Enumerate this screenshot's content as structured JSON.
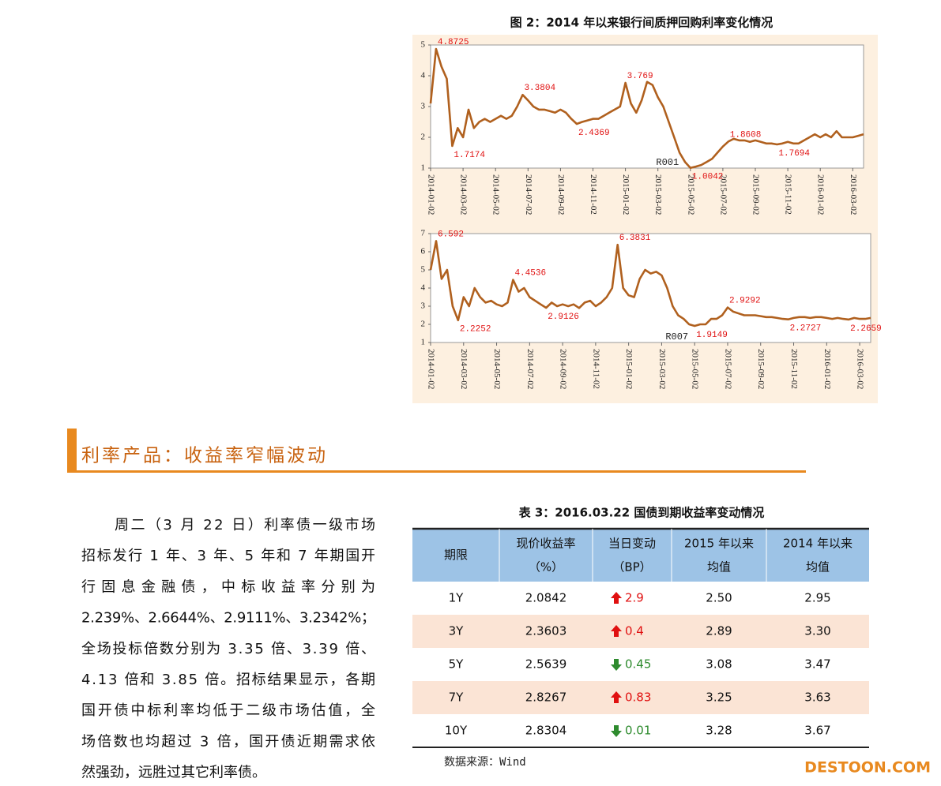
{
  "figure_title": "图 2：2014 年以来银行间质押回购利率变化情况",
  "chart_data": [
    {
      "type": "line",
      "categories": [
        "2014-01-02",
        null,
        null,
        null,
        null,
        null,
        "2014-03-02",
        null,
        null,
        null,
        null,
        null,
        "2014-05-02",
        null,
        null,
        null,
        null,
        null,
        "2014-07-02",
        null,
        null,
        null,
        null,
        null,
        "2014-09-02",
        null,
        null,
        null,
        null,
        null,
        "2014-11-02",
        null,
        null,
        null,
        null,
        null,
        "2015-01-02",
        null,
        null,
        null,
        null,
        null,
        "2015-03-02",
        null,
        null,
        null,
        null,
        null,
        "2015-05-02",
        null,
        null,
        null,
        null,
        null,
        "2015-07-02",
        null,
        null,
        null,
        null,
        null,
        "2015-09-02",
        null,
        null,
        null,
        null,
        null,
        "2015-11-02",
        null,
        null,
        null,
        null,
        null,
        "2016-01-02",
        null,
        null,
        null,
        null,
        null,
        "2016-03-02",
        null,
        null
      ],
      "series": [
        {
          "name": "R001",
          "color": "#b0601e",
          "values": [
            3.1,
            4.8725,
            4.3,
            3.9,
            1.7174,
            2.3,
            2.0,
            2.9,
            2.3,
            2.5,
            2.6,
            2.5,
            2.6,
            2.7,
            2.6,
            2.7,
            3.0,
            3.3804,
            3.2,
            3.0,
            2.9,
            2.9,
            2.85,
            2.8,
            2.9,
            2.8,
            2.6,
            2.4369,
            2.5,
            2.55,
            2.6,
            2.6,
            2.7,
            2.8,
            2.9,
            3.0,
            3.769,
            3.1,
            2.8,
            3.2,
            3.8,
            3.7,
            3.3,
            3.0,
            2.5,
            2.0,
            1.5,
            1.2,
            1.0042,
            1.05,
            1.1,
            1.2,
            1.3,
            1.5,
            1.7,
            1.8608,
            1.95,
            1.9,
            1.9,
            1.85,
            1.9,
            1.85,
            1.8,
            1.8,
            1.7694,
            1.8,
            1.85,
            1.8,
            1.8,
            1.9,
            2.0,
            2.1,
            2.0,
            2.1,
            2.0,
            2.2,
            2.0,
            2.0,
            2.0,
            2.05,
            2.1
          ],
          "value_labels": [
            null,
            "4.8725",
            null,
            null,
            "1.7174",
            null,
            null,
            null,
            null,
            null,
            null,
            null,
            null,
            null,
            null,
            null,
            null,
            "3.3804",
            null,
            null,
            null,
            null,
            null,
            null,
            null,
            null,
            null,
            "2.4369",
            null,
            null,
            null,
            null,
            null,
            null,
            null,
            null,
            "3.769",
            null,
            null,
            null,
            null,
            null,
            null,
            null,
            null,
            null,
            null,
            null,
            "1.0042",
            null,
            null,
            null,
            null,
            null,
            null,
            "1.8608",
            null,
            null,
            null,
            null,
            null,
            null,
            null,
            null,
            "1.7694",
            null,
            null,
            null,
            null,
            null,
            null,
            null,
            null,
            null,
            null,
            null,
            null,
            null,
            null,
            null,
            null
          ]
        }
      ],
      "ylim": [
        1,
        5
      ],
      "yticks": [
        1,
        2,
        3,
        4,
        5
      ]
    },
    {
      "type": "line",
      "categories": [
        "2014-01-02",
        null,
        null,
        null,
        null,
        null,
        "2014-03-02",
        null,
        null,
        null,
        null,
        null,
        "2014-05-02",
        null,
        null,
        null,
        null,
        null,
        "2014-07-02",
        null,
        null,
        null,
        null,
        null,
        "2014-09-02",
        null,
        null,
        null,
        null,
        null,
        "2014-11-02",
        null,
        null,
        null,
        null,
        null,
        "2015-01-02",
        null,
        null,
        null,
        null,
        null,
        "2015-03-02",
        null,
        null,
        null,
        null,
        null,
        "2015-05-02",
        null,
        null,
        null,
        null,
        null,
        "2015-07-02",
        null,
        null,
        null,
        null,
        null,
        "2015-09-02",
        null,
        null,
        null,
        null,
        null,
        "2015-11-02",
        null,
        null,
        null,
        null,
        null,
        "2016-01-02",
        null,
        null,
        null,
        null,
        null,
        "2016-03-02",
        null,
        null
      ],
      "series": [
        {
          "name": "R007",
          "color": "#b0601e",
          "values": [
            5.0,
            6.592,
            4.5,
            5.0,
            3.0,
            2.2252,
            3.5,
            3.0,
            4.0,
            3.5,
            3.2,
            3.3,
            3.1,
            3.0,
            3.2,
            4.4536,
            3.8,
            4.0,
            3.5,
            3.3,
            3.1,
            2.9126,
            3.2,
            3.0,
            3.1,
            3.0,
            3.1,
            2.9,
            3.2,
            3.3,
            3.0,
            3.2,
            3.5,
            4.0,
            6.3831,
            4.0,
            3.6,
            3.5,
            4.5,
            5.0,
            4.8,
            4.9,
            4.7,
            4.0,
            3.0,
            2.5,
            2.3,
            2.0,
            1.9149,
            2.0,
            2.0,
            2.3,
            2.3,
            2.5,
            2.9292,
            2.7,
            2.6,
            2.5,
            2.5,
            2.5,
            2.45,
            2.4,
            2.4,
            2.35,
            2.3,
            2.2727,
            2.35,
            2.4,
            2.4,
            2.35,
            2.4,
            2.4,
            2.35,
            2.3,
            2.35,
            2.3,
            2.2659,
            2.35,
            2.3,
            2.3,
            2.35
          ],
          "value_labels": [
            null,
            "6.592",
            null,
            null,
            null,
            "2.2252",
            null,
            null,
            null,
            null,
            null,
            null,
            null,
            null,
            null,
            "4.4536",
            null,
            null,
            null,
            null,
            null,
            "2.9126",
            null,
            null,
            null,
            null,
            null,
            null,
            null,
            null,
            null,
            null,
            null,
            null,
            "6.3831",
            null,
            null,
            null,
            null,
            null,
            null,
            null,
            null,
            null,
            null,
            null,
            null,
            null,
            "1.9149",
            null,
            null,
            null,
            null,
            null,
            "2.9292",
            null,
            null,
            null,
            null,
            null,
            null,
            null,
            null,
            null,
            null,
            "2.2727",
            null,
            null,
            null,
            null,
            null,
            null,
            null,
            null,
            null,
            null,
            "2.2659",
            null,
            null,
            null,
            null
          ]
        }
      ],
      "ylim": [
        1,
        7
      ],
      "yticks": [
        1,
        2,
        3,
        4,
        5,
        6,
        7
      ]
    }
  ],
  "section_heading": "利率产品：收益率窄幅波动",
  "paragraph": [
    "周二（3 月 22 日）利率债一级市场",
    "招标发行 1 年、3 年、5 年和 7 年期国开",
    "行固息金融债，中标收益率分别为",
    "2.239%、2.6644%、2.9111%、3.2342%；",
    "全场投标倍数分别为 3.35 倍、3.39 倍、",
    "4.13 倍和 3.85 倍。招标结果显示，各期",
    "国开债中标利率均低于二级市场估值，全",
    "场倍数也均超过 3 倍，国开债近期需求依",
    "然强劲，远胜过其它利率债。"
  ],
  "table": {
    "title": "表 3：2016.03.22 国债到期收益率变动情况",
    "header": [
      [
        "期限"
      ],
      [
        "现价收益率",
        "（%）"
      ],
      [
        "当日变动",
        "（BP）"
      ],
      [
        "2015 年以来",
        "均值"
      ],
      [
        "2014 年以来",
        "均值"
      ]
    ],
    "rows": [
      [
        "1Y",
        "2.0842",
        "2.9",
        "2.50",
        "2.95"
      ],
      [
        "3Y",
        "2.3603",
        "0.4",
        "2.89",
        "3.30"
      ],
      [
        "5Y",
        "2.5639",
        "0.45",
        "3.08",
        "3.47"
      ],
      [
        "7Y",
        "2.8267",
        "0.83",
        "3.25",
        "3.63"
      ],
      [
        "10Y",
        "2.8304",
        "0.01",
        "3.28",
        "3.67"
      ]
    ],
    "change_direction": [
      "up",
      "up",
      "down",
      "up",
      "down"
    ],
    "source": "数据来源：Wind"
  },
  "watermark": "DESTOON.COM"
}
